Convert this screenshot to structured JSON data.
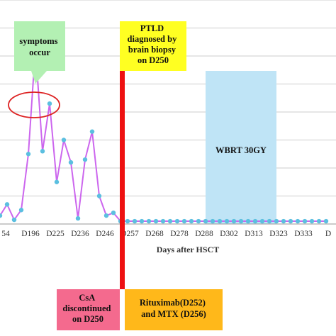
{
  "chart_data": {
    "type": "line",
    "xlabel": "Days after HSCT",
    "ylabel": "",
    "tick_labels": [
      "54",
      "D196",
      "D225",
      "D236",
      "D246",
      "D257",
      "D268",
      "D278",
      "D288",
      "D302",
      "D313",
      "D323",
      "D333",
      "D"
    ],
    "series": [
      {
        "color": "#cc66ee",
        "marker_color": "#5bbfe0",
        "values": [
          0.3,
          0.7,
          0.15,
          0.5,
          2.5,
          6.3,
          2.6,
          4.3,
          1.5,
          3.0,
          2.2,
          0.2,
          2.3,
          3.3,
          1.0,
          0.3,
          0.4,
          0.1,
          0.1,
          0.1,
          0.1,
          0.1,
          0.1,
          0.1,
          0.1,
          0.1,
          0.1,
          0.1,
          0.1,
          0.1,
          0.1,
          0.1,
          0.1,
          0.1,
          0.1,
          0.1,
          0.1,
          0.1,
          0.1,
          0.1,
          0.1,
          0.1,
          0.1,
          0.1,
          0.1,
          0.1,
          0.1
        ]
      }
    ],
    "ylim": [
      0,
      8
    ],
    "grid": true,
    "event_line": {
      "label": "D250",
      "color": "#ee1111"
    },
    "shaded_region": {
      "label": "WBRT 30GY",
      "color": "#bfe4f6"
    }
  },
  "annotations": {
    "symptoms": {
      "lines": [
        "symptoms",
        "occur"
      ],
      "color": "#b3f0b3"
    },
    "ptld": {
      "lines": [
        "PTLD",
        "diagnosed by",
        "brain biopsy",
        "on D250"
      ],
      "color": "#ffff22"
    },
    "wbrt": {
      "text": "WBRT 30GY"
    },
    "csa": {
      "lines": [
        "CsA",
        "discontinued",
        "on D250"
      ],
      "color": "#f46a8e"
    },
    "ritux": {
      "lines": [
        "Rituximab(D252)",
        "and MTX (D256)"
      ],
      "color": "#ffb81a"
    }
  },
  "colors": {
    "grid": "#cccccc",
    "ellipse": "#dd2222"
  }
}
